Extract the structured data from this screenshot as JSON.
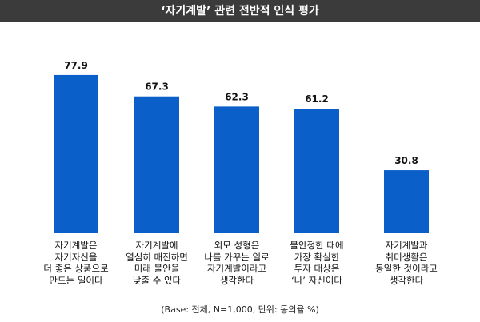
{
  "chart_data": {
    "type": "bar",
    "title": "‘자기계발’ 관련 전반적 인식 평가",
    "categories": [
      "자기계발은\n자기자신을\n더 좋은 상품으로\n만드는 일이다",
      "자기계발에\n열심히 매진하면\n미래 불안을\n낮출 수 있다",
      "외모 성형은\n나를 가꾸는 일로\n자기계발이라고\n생각한다",
      "불안정한 때에\n가장 확실한\n투자 대상은\n‘나’ 자신이다",
      "자기계발과\n취미생활은\n동일한 것이라고\n생각한다"
    ],
    "values": [
      77.9,
      67.3,
      62.3,
      61.2,
      30.8
    ],
    "value_labels": [
      "77.9",
      "67.3",
      "62.3",
      "61.2",
      "30.8"
    ],
    "ylim": [
      0,
      100
    ],
    "bar_color": "#0b5fc8",
    "grid": false,
    "footnote": "(Base: 전체, N=1,000, 단위: 동의율 %)"
  }
}
